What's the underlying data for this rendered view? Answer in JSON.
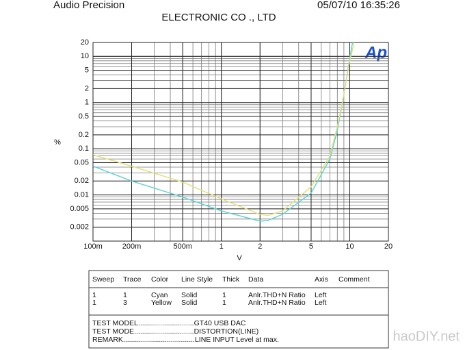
{
  "header": {
    "left": "Audio Precision",
    "center": "ELECTRONIC CO ., LTD",
    "right": "05/07/10 16:35:26"
  },
  "chart_data": {
    "type": "line",
    "logo": "Ap",
    "y_label": "%",
    "x_label": "V",
    "log_x": true,
    "log_y": true,
    "grid": true,
    "minor_grid": true,
    "xlim": [
      0.1,
      20
    ],
    "ylim": [
      0.001,
      20
    ],
    "xticks": [
      {
        "value": 0.1,
        "label": "100m"
      },
      {
        "value": 0.2,
        "label": "200m"
      },
      {
        "value": 0.5,
        "label": "500m"
      },
      1,
      2,
      5,
      10,
      20
    ],
    "yticks": [
      20,
      10,
      5,
      2,
      1,
      0.5,
      0.2,
      0.1,
      0.05,
      0.02,
      0.01,
      0.005,
      0.002
    ],
    "x": [
      0.1,
      0.2,
      0.5,
      1,
      2,
      2.3,
      3,
      5,
      7,
      8,
      9,
      10,
      10.5,
      10.8
    ],
    "series": [
      {
        "color": "#5fd3d8",
        "values": [
          0.042,
          0.02,
          0.009,
          0.0045,
          0.0027,
          0.0028,
          0.0038,
          0.011,
          0.06,
          0.25,
          1.5,
          9,
          20,
          null
        ]
      },
      {
        "color": "#e4e07a",
        "values": [
          0.074,
          0.042,
          0.019,
          0.0082,
          0.0038,
          0.0036,
          0.0045,
          0.015,
          0.07,
          0.3,
          1.5,
          8,
          14,
          20
        ]
      }
    ]
  },
  "legend_table": {
    "columns": [
      "Sweep",
      "Trace",
      "Color",
      "Line Style",
      "Thick",
      "Data",
      "Axis",
      "Comment"
    ],
    "rows": [
      [
        "1",
        "1",
        "Cyan",
        "Solid",
        "1",
        "Anlr.THD+N Ratio",
        "Left"
      ],
      [
        "1",
        "3",
        "Yellow",
        "Solid",
        "1",
        "Anlr.THD+N Ratio",
        "Left"
      ]
    ]
  },
  "notes": [
    "TEST  MODEL............................GT40  USB DAC",
    "TEST  MODE..............................DISTORTION(LINE)",
    "REMARK....................................LINE INPUT Level  at max."
  ],
  "watermark": "haoDIY.net"
}
